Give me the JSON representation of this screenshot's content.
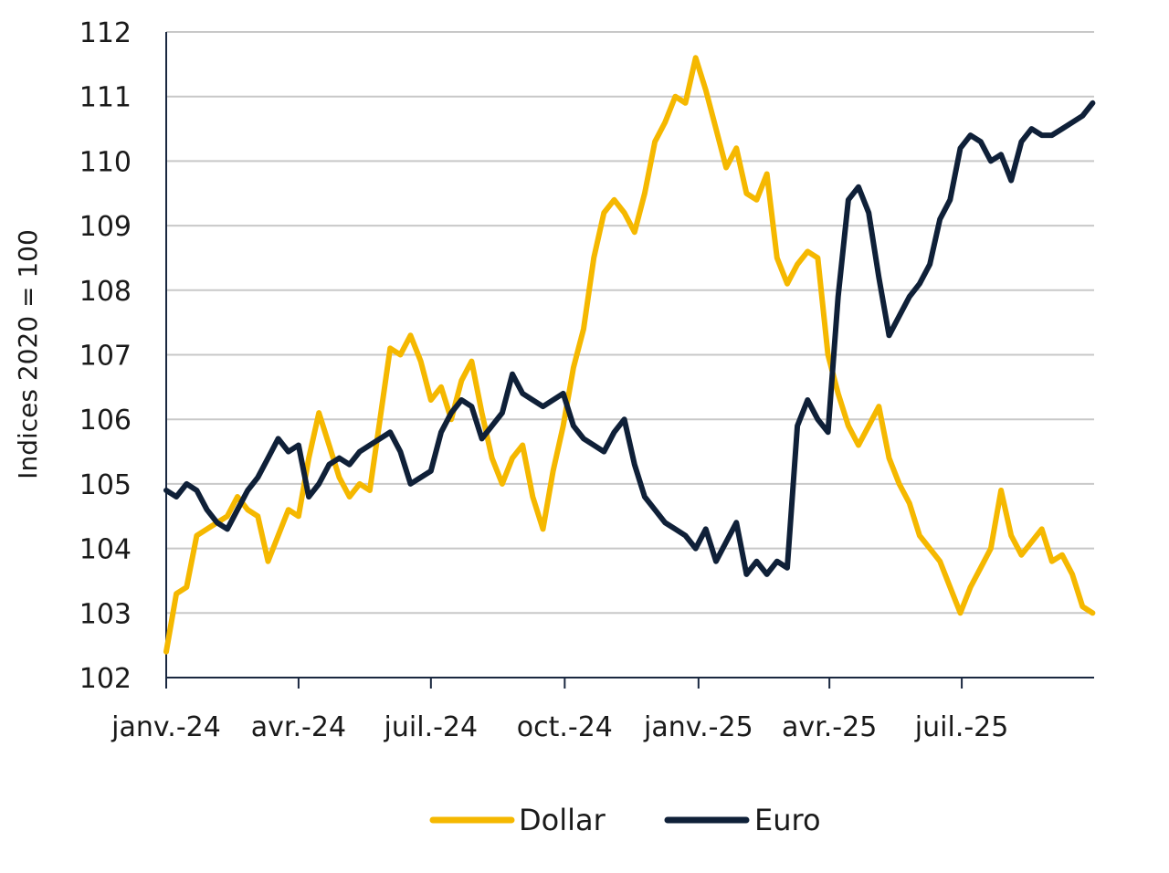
{
  "chart_data": {
    "type": "line",
    "title": "",
    "xlabel": "",
    "ylabel": "Indices 2020 = 100",
    "ylim": [
      102,
      112
    ],
    "yticks": [
      102,
      103,
      104,
      105,
      106,
      107,
      108,
      109,
      110,
      111,
      112
    ],
    "xlim": [
      "2024-01-01",
      "2025-09-30"
    ],
    "xticks": [
      {
        "date": "2024-01-01",
        "label": "janv.-24"
      },
      {
        "date": "2024-04-01",
        "label": "avr.-24"
      },
      {
        "date": "2024-07-01",
        "label": "juil.-24"
      },
      {
        "date": "2024-10-01",
        "label": "oct.-24"
      },
      {
        "date": "2025-01-01",
        "label": "janv.-25"
      },
      {
        "date": "2025-04-01",
        "label": "avr.-25"
      },
      {
        "date": "2025-07-01",
        "label": "juil.-25"
      }
    ],
    "grid": "horizontal",
    "legend": "bottom-center",
    "series": [
      {
        "name": "Dollar",
        "color": "#F5B800",
        "x": [
          "2024-01-01",
          "2024-01-08",
          "2024-01-15",
          "2024-01-22",
          "2024-01-29",
          "2024-02-05",
          "2024-02-12",
          "2024-02-19",
          "2024-02-26",
          "2024-03-04",
          "2024-03-11",
          "2024-03-18",
          "2024-03-25",
          "2024-04-01",
          "2024-04-08",
          "2024-04-15",
          "2024-04-22",
          "2024-04-29",
          "2024-05-06",
          "2024-05-13",
          "2024-05-20",
          "2024-05-27",
          "2024-06-03",
          "2024-06-10",
          "2024-06-17",
          "2024-06-24",
          "2024-07-01",
          "2024-07-08",
          "2024-07-15",
          "2024-07-22",
          "2024-07-29",
          "2024-08-05",
          "2024-08-12",
          "2024-08-19",
          "2024-08-26",
          "2024-09-02",
          "2024-09-09",
          "2024-09-16",
          "2024-09-23",
          "2024-09-30",
          "2024-10-07",
          "2024-10-14",
          "2024-10-21",
          "2024-10-28",
          "2024-11-04",
          "2024-11-11",
          "2024-11-18",
          "2024-11-25",
          "2024-12-02",
          "2024-12-09",
          "2024-12-16",
          "2024-12-23",
          "2024-12-30",
          "2025-01-06",
          "2025-01-13",
          "2025-01-20",
          "2025-01-27",
          "2025-02-03",
          "2025-02-10",
          "2025-02-17",
          "2025-02-24",
          "2025-03-03",
          "2025-03-10",
          "2025-03-17",
          "2025-03-24",
          "2025-03-31",
          "2025-04-07",
          "2025-04-14",
          "2025-04-21",
          "2025-04-28",
          "2025-05-05",
          "2025-05-12",
          "2025-05-19",
          "2025-05-26",
          "2025-06-02",
          "2025-06-09",
          "2025-06-16",
          "2025-06-23",
          "2025-06-30",
          "2025-07-07",
          "2025-07-14",
          "2025-07-21",
          "2025-07-28",
          "2025-08-04",
          "2025-08-11",
          "2025-08-18",
          "2025-08-25",
          "2025-09-01",
          "2025-09-08",
          "2025-09-15",
          "2025-09-22",
          "2025-09-29"
        ],
        "y": [
          102.4,
          103.3,
          103.4,
          104.2,
          104.3,
          104.4,
          104.5,
          104.8,
          104.6,
          104.5,
          103.8,
          104.2,
          104.6,
          104.5,
          105.4,
          106.1,
          105.6,
          105.1,
          104.8,
          105.0,
          104.9,
          106.0,
          107.1,
          107.0,
          107.3,
          106.9,
          106.3,
          106.5,
          106.0,
          106.6,
          106.9,
          106.1,
          105.4,
          105.0,
          105.4,
          105.6,
          104.8,
          104.3,
          105.2,
          105.9,
          106.8,
          107.4,
          108.5,
          109.2,
          109.4,
          109.2,
          108.9,
          109.5,
          110.3,
          110.6,
          111.0,
          110.9,
          111.6,
          111.1,
          110.5,
          109.9,
          110.2,
          109.5,
          109.4,
          109.8,
          108.5,
          108.1,
          108.4,
          108.6,
          108.5,
          107.0,
          106.4,
          105.9,
          105.6,
          105.9,
          106.2,
          105.4,
          105.0,
          104.7,
          104.2,
          104.0,
          103.8,
          103.4,
          103.0,
          103.4,
          103.7,
          104.0,
          104.9,
          104.2,
          103.9,
          104.1,
          104.3,
          103.8,
          103.9,
          103.6,
          103.1,
          103.0
        ]
      },
      {
        "name": "Euro",
        "color": "#0F2038",
        "x": [
          "2024-01-01",
          "2024-01-08",
          "2024-01-15",
          "2024-01-22",
          "2024-01-29",
          "2024-02-05",
          "2024-02-12",
          "2024-02-19",
          "2024-02-26",
          "2024-03-04",
          "2024-03-11",
          "2024-03-18",
          "2024-03-25",
          "2024-04-01",
          "2024-04-08",
          "2024-04-15",
          "2024-04-22",
          "2024-04-29",
          "2024-05-06",
          "2024-05-13",
          "2024-05-20",
          "2024-05-27",
          "2024-06-03",
          "2024-06-10",
          "2024-06-17",
          "2024-06-24",
          "2024-07-01",
          "2024-07-08",
          "2024-07-15",
          "2024-07-22",
          "2024-07-29",
          "2024-08-05",
          "2024-08-12",
          "2024-08-19",
          "2024-08-26",
          "2024-09-02",
          "2024-09-09",
          "2024-09-16",
          "2024-09-23",
          "2024-09-30",
          "2024-10-07",
          "2024-10-14",
          "2024-10-21",
          "2024-10-28",
          "2024-11-04",
          "2024-11-11",
          "2024-11-18",
          "2024-11-25",
          "2024-12-02",
          "2024-12-09",
          "2024-12-16",
          "2024-12-23",
          "2024-12-30",
          "2025-01-06",
          "2025-01-13",
          "2025-01-20",
          "2025-01-27",
          "2025-02-03",
          "2025-02-10",
          "2025-02-17",
          "2025-02-24",
          "2025-03-03",
          "2025-03-10",
          "2025-03-17",
          "2025-03-24",
          "2025-03-31",
          "2025-04-07",
          "2025-04-14",
          "2025-04-21",
          "2025-04-28",
          "2025-05-05",
          "2025-05-12",
          "2025-05-19",
          "2025-05-26",
          "2025-06-02",
          "2025-06-09",
          "2025-06-16",
          "2025-06-23",
          "2025-06-30",
          "2025-07-07",
          "2025-07-14",
          "2025-07-21",
          "2025-07-28",
          "2025-08-04",
          "2025-08-11",
          "2025-08-18",
          "2025-08-25",
          "2025-09-01",
          "2025-09-08",
          "2025-09-15",
          "2025-09-22",
          "2025-09-29"
        ],
        "y": [
          104.9,
          104.8,
          105.0,
          104.9,
          104.6,
          104.4,
          104.3,
          104.6,
          104.9,
          105.1,
          105.4,
          105.7,
          105.5,
          105.6,
          104.8,
          105.0,
          105.3,
          105.4,
          105.3,
          105.5,
          105.6,
          105.7,
          105.8,
          105.5,
          105.0,
          105.1,
          105.2,
          105.8,
          106.1,
          106.3,
          106.2,
          105.7,
          105.9,
          106.1,
          106.7,
          106.4,
          106.3,
          106.2,
          106.3,
          106.4,
          105.9,
          105.7,
          105.6,
          105.5,
          105.8,
          106.0,
          105.3,
          104.8,
          104.6,
          104.4,
          104.3,
          104.2,
          104.0,
          104.3,
          103.8,
          104.1,
          104.4,
          103.6,
          103.8,
          103.6,
          103.8,
          103.7,
          105.9,
          106.3,
          106.0,
          105.8,
          107.9,
          109.4,
          109.6,
          109.2,
          108.2,
          107.3,
          107.6,
          107.9,
          108.1,
          108.4,
          109.1,
          109.4,
          110.2,
          110.4,
          110.3,
          110.0,
          110.1,
          109.7,
          110.3,
          110.5,
          110.4,
          110.4,
          110.5,
          110.6,
          110.7,
          110.9
        ]
      }
    ]
  }
}
